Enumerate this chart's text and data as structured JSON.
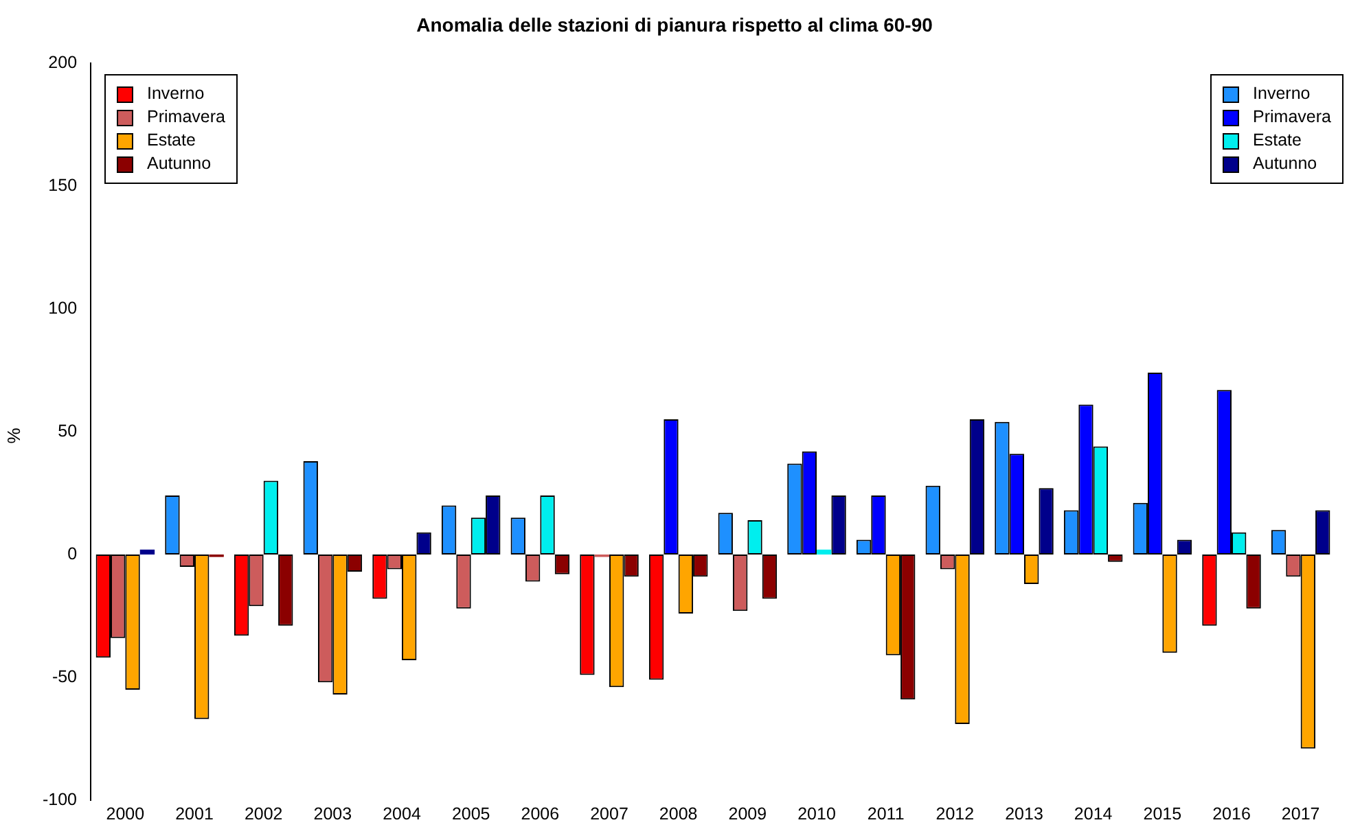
{
  "chart_data": {
    "type": "bar",
    "title": "Anomalia delle stazioni di pianura rispetto al clima 60-90",
    "ylabel": "%",
    "categories": [
      "2000",
      "2001",
      "2002",
      "2003",
      "2004",
      "2005",
      "2006",
      "2007",
      "2008",
      "2009",
      "2010",
      "2011",
      "2012",
      "2013",
      "2014",
      "2015",
      "2016",
      "2017"
    ],
    "ylim": [
      -100,
      200
    ],
    "yticks": [
      -100,
      -50,
      0,
      50,
      100,
      150,
      200
    ],
    "grid": false,
    "legend": "top left",
    "series": [
      {
        "name": "Inverno",
        "color": "#ff0000",
        "values": [
          -42,
          null,
          -33,
          null,
          -18,
          null,
          null,
          -49,
          -51,
          null,
          null,
          null,
          null,
          null,
          null,
          null,
          -29,
          null
        ]
      },
      {
        "name": "Primavera",
        "color": "#cd5c5c",
        "values": [
          -34,
          -5,
          -21,
          -52,
          -6,
          -22,
          -11,
          -1,
          null,
          -23,
          null,
          null,
          -6,
          null,
          null,
          null,
          null,
          -9
        ]
      },
      {
        "name": "Estate",
        "color": "#ffa500",
        "values": [
          -55,
          -67,
          null,
          -57,
          -43,
          null,
          null,
          -54,
          -24,
          null,
          null,
          -41,
          -69,
          -12,
          null,
          -40,
          null,
          -79
        ]
      },
      {
        "name": "Autunno",
        "color": "#8b0000",
        "values": [
          null,
          -1,
          -29,
          -7,
          null,
          null,
          -8,
          -9,
          -9,
          -18,
          null,
          -59,
          null,
          null,
          -3,
          null,
          -22,
          null
        ]
      },
      {
        "name": "Inverno",
        "color": "#1e90ff",
        "values": [
          null,
          24,
          null,
          38,
          null,
          20,
          15,
          null,
          null,
          17,
          37,
          6,
          28,
          54,
          18,
          21,
          null,
          10
        ]
      },
      {
        "name": "Primavera",
        "color": "#0000ff",
        "values": [
          null,
          null,
          null,
          null,
          null,
          null,
          null,
          null,
          55,
          null,
          42,
          24,
          null,
          41,
          61,
          74,
          67,
          null
        ]
      },
      {
        "name": "Estate",
        "color": "#00eeee",
        "values": [
          null,
          null,
          30,
          null,
          null,
          15,
          24,
          null,
          null,
          14,
          2,
          null,
          null,
          null,
          44,
          null,
          9,
          null
        ]
      },
      {
        "name": "Autunno",
        "color": "#00008b",
        "values": [
          2,
          null,
          null,
          null,
          9,
          24,
          null,
          null,
          null,
          null,
          24,
          null,
          55,
          27,
          null,
          6,
          null,
          18
        ]
      }
    ]
  }
}
